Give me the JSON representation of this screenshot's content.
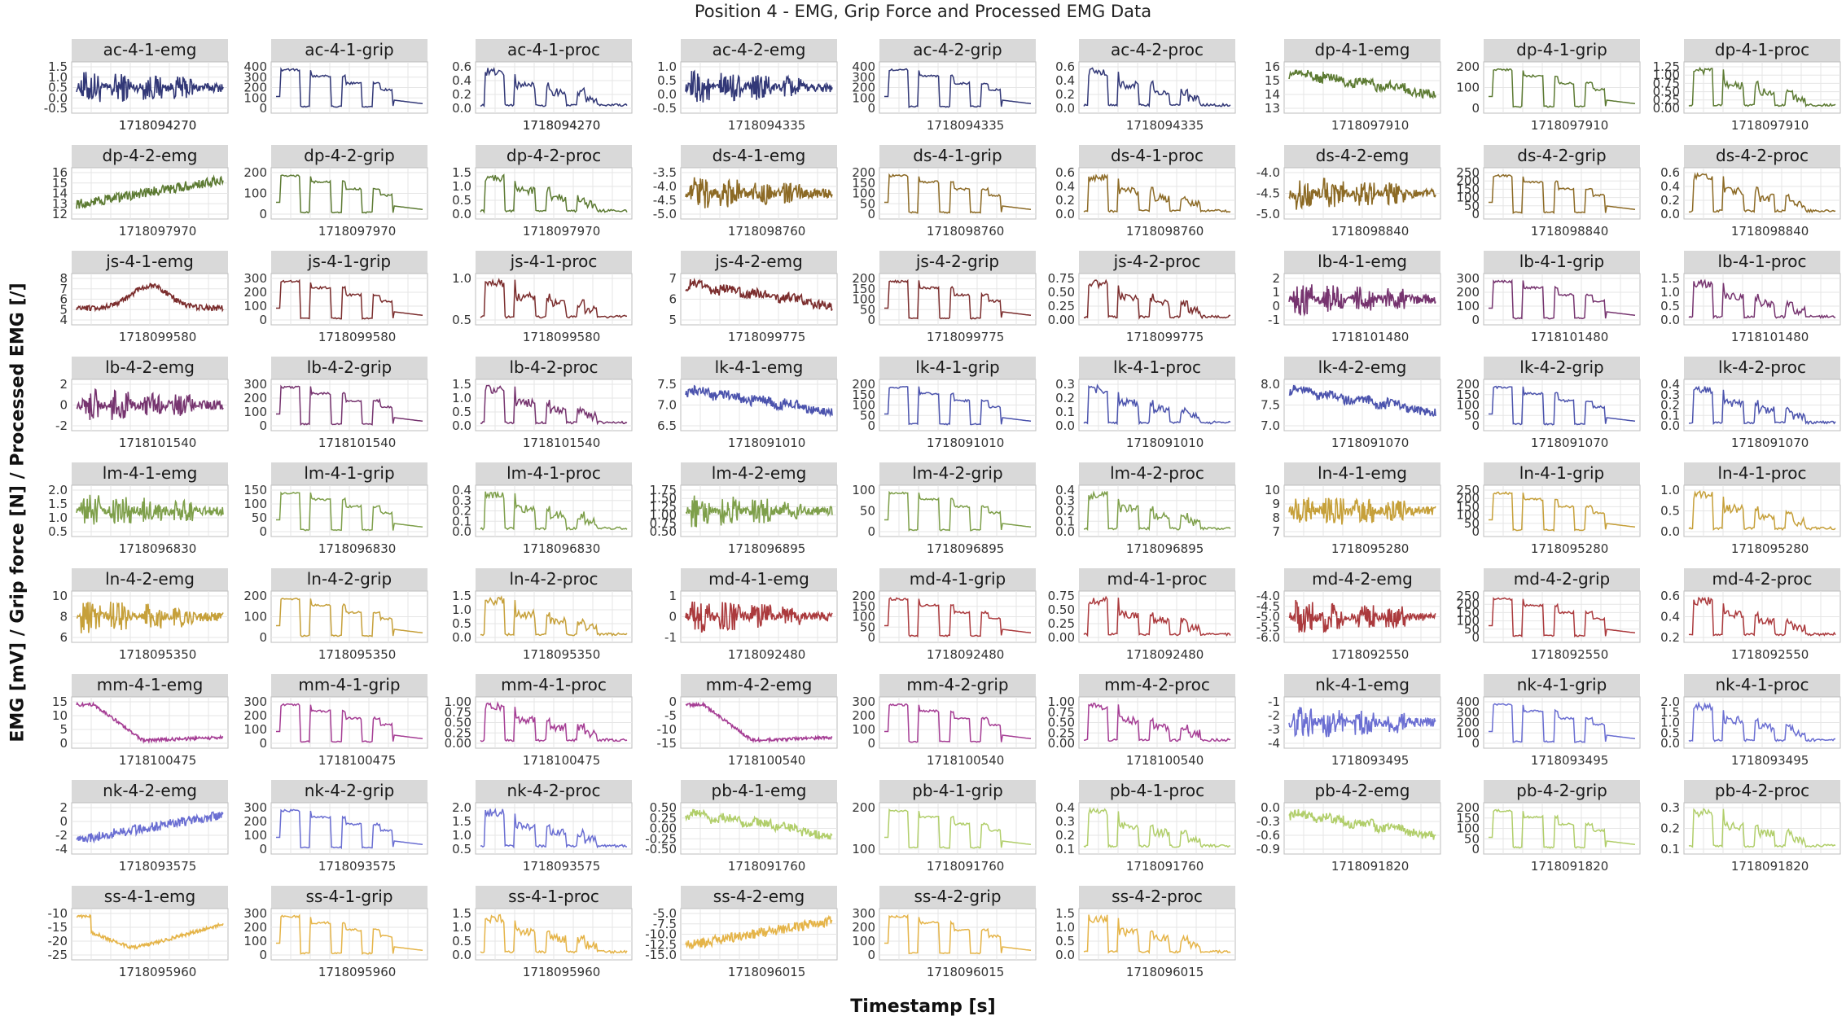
{
  "figure": {
    "title": "Position 4 - EMG, Grip Force and Processed EMG Data",
    "xlabel": "Timestamp [s]",
    "ylabel": "EMG [mV] / Grip force [N] / Processed EMG [/]"
  },
  "colors": {
    "ac": "#323877",
    "dp": "#5c7a32",
    "ds": "#8c6a25",
    "js": "#7b2d2d",
    "lb": "#76346f",
    "lk": "#4b53ad",
    "lm": "#7e9f4a",
    "ln": "#c6a03a",
    "md": "#ab3a3d",
    "mm": "#a53d94",
    "nk": "#6a6ed2",
    "pb": "#b1ce6a",
    "ss": "#e5b448",
    "strip": "#d9d9d9",
    "grid": "#e6e6e6"
  },
  "chart_data": [
    {
      "title": "ac-4-1-emg",
      "type": "line",
      "yticks": [
        "1.5",
        "1.0",
        "0.5",
        "0.0",
        "-0.5"
      ],
      "xticks": [
        "1718094270",
        "1718094270"
      ],
      "shape": "emg_burst"
    },
    {
      "title": "ac-4-1-grip",
      "type": "line",
      "yticks": [
        "400",
        "300",
        "200",
        "100",
        "0"
      ],
      "xticks": [],
      "shape": "grip"
    },
    {
      "title": "ac-4-1-proc",
      "type": "line",
      "yticks": [
        "0.6",
        "0.4",
        "0.2",
        "0.0"
      ],
      "xticks": [
        "1718094270",
        "1718094270"
      ],
      "shape": "proc"
    },
    {
      "title": "ac-4-2-emg",
      "type": "line",
      "yticks": [
        "1.0",
        "0.5",
        "0.0",
        "-0.5"
      ],
      "xticks": [
        "1718094335"
      ],
      "shape": "emg_burst"
    },
    {
      "title": "ac-4-2-grip",
      "type": "line",
      "yticks": [
        "400",
        "300",
        "200",
        "100",
        "0"
      ],
      "xticks": [
        "1718094335"
      ],
      "shape": "grip"
    },
    {
      "title": "ac-4-2-proc",
      "type": "line",
      "yticks": [
        "0.6",
        "0.4",
        "0.2",
        "0.0"
      ],
      "xticks": [
        "1718094335"
      ],
      "shape": "proc"
    },
    {
      "title": "dp-4-1-emg",
      "type": "line",
      "yticks": [
        "16",
        "15",
        "14",
        "13"
      ],
      "xticks": [
        "1718097910"
      ],
      "shape": "emg_decay"
    },
    {
      "title": "dp-4-1-grip",
      "type": "line",
      "yticks": [
        "200",
        "100",
        "0"
      ],
      "xticks": [
        "1718097910"
      ],
      "shape": "grip"
    },
    {
      "title": "dp-4-1-proc",
      "type": "line",
      "yticks": [
        "1.25",
        "1.00",
        "0.75",
        "0.50",
        "0.25",
        "0.00"
      ],
      "xticks": [
        "1718097910"
      ],
      "shape": "proc"
    },
    {
      "title": "dp-4-2-emg",
      "type": "line",
      "yticks": [
        "16",
        "15",
        "14",
        "13",
        "12"
      ],
      "xticks": [
        "1718097970"
      ],
      "shape": "emg_rise"
    },
    {
      "title": "dp-4-2-grip",
      "type": "line",
      "yticks": [
        "200",
        "100",
        "0"
      ],
      "xticks": [
        "1718097970"
      ],
      "shape": "grip"
    },
    {
      "title": "dp-4-2-proc",
      "type": "line",
      "yticks": [
        "1.5",
        "1.0",
        "0.5",
        "0.0"
      ],
      "xticks": [
        "1718097970"
      ],
      "shape": "proc"
    },
    {
      "title": "ds-4-1-emg",
      "type": "line",
      "yticks": [
        "-3.5",
        "-4.0",
        "-4.5",
        "-5.0"
      ],
      "xticks": [
        "1718098760"
      ],
      "shape": "emg_burst"
    },
    {
      "title": "ds-4-1-grip",
      "type": "line",
      "yticks": [
        "200",
        "150",
        "100",
        "50",
        "0"
      ],
      "xticks": [
        "1718098760"
      ],
      "shape": "grip"
    },
    {
      "title": "ds-4-1-proc",
      "type": "line",
      "yticks": [
        "0.6",
        "0.4",
        "0.2",
        "0.0"
      ],
      "xticks": [
        "1718098760"
      ],
      "shape": "proc"
    },
    {
      "title": "ds-4-2-emg",
      "type": "line",
      "yticks": [
        "-4.0",
        "-4.5",
        "-5.0"
      ],
      "xticks": [
        "1718098840"
      ],
      "shape": "emg_burst"
    },
    {
      "title": "ds-4-2-grip",
      "type": "line",
      "yticks": [
        "250",
        "200",
        "150",
        "100",
        "50",
        "0"
      ],
      "xticks": [
        "1718098840"
      ],
      "shape": "grip"
    },
    {
      "title": "ds-4-2-proc",
      "type": "line",
      "yticks": [
        "0.6",
        "0.4",
        "0.2",
        "0.0"
      ],
      "xticks": [
        "1718098840"
      ],
      "shape": "proc"
    },
    {
      "title": "js-4-1-emg",
      "type": "line",
      "yticks": [
        "8",
        "7",
        "6",
        "5",
        "4"
      ],
      "xticks": [
        "1718099580"
      ],
      "shape": "emg_hump"
    },
    {
      "title": "js-4-1-grip",
      "type": "line",
      "yticks": [
        "300",
        "200",
        "100",
        "0"
      ],
      "xticks": [
        "1718099580"
      ],
      "shape": "grip"
    },
    {
      "title": "js-4-1-proc",
      "type": "line",
      "yticks": [
        "1.0",
        "0.5"
      ],
      "xticks": [
        "1718099580"
      ],
      "shape": "proc"
    },
    {
      "title": "js-4-2-emg",
      "type": "line",
      "yticks": [
        "7",
        "6",
        "5"
      ],
      "xticks": [
        "1718099775"
      ],
      "shape": "emg_decay"
    },
    {
      "title": "js-4-2-grip",
      "type": "line",
      "yticks": [
        "200",
        "150",
        "100",
        "50",
        "0"
      ],
      "xticks": [
        "1718099775"
      ],
      "shape": "grip"
    },
    {
      "title": "js-4-2-proc",
      "type": "line",
      "yticks": [
        "0.75",
        "0.50",
        "0.25",
        "0.00"
      ],
      "xticks": [
        "1718099775"
      ],
      "shape": "proc"
    },
    {
      "title": "lb-4-1-emg",
      "type": "line",
      "yticks": [
        "2",
        "1",
        "0",
        "-1"
      ],
      "xticks": [
        "1718101480"
      ],
      "shape": "emg_burst"
    },
    {
      "title": "lb-4-1-grip",
      "type": "line",
      "yticks": [
        "300",
        "200",
        "100",
        "0"
      ],
      "xticks": [
        "1718101480"
      ],
      "shape": "grip"
    },
    {
      "title": "lb-4-1-proc",
      "type": "line",
      "yticks": [
        "1.5",
        "1.0",
        "0.5",
        "0.0"
      ],
      "xticks": [
        "1718101480"
      ],
      "shape": "proc"
    },
    {
      "title": "lb-4-2-emg",
      "type": "line",
      "yticks": [
        "2",
        "0",
        "-2"
      ],
      "xticks": [
        "1718101540"
      ],
      "shape": "emg_burst"
    },
    {
      "title": "lb-4-2-grip",
      "type": "line",
      "yticks": [
        "300",
        "200",
        "100",
        "0"
      ],
      "xticks": [
        "1718101540"
      ],
      "shape": "grip"
    },
    {
      "title": "lb-4-2-proc",
      "type": "line",
      "yticks": [
        "1.5",
        "1.0",
        "0.5",
        "0.0"
      ],
      "xticks": [
        "1718101540"
      ],
      "shape": "proc"
    },
    {
      "title": "lk-4-1-emg",
      "type": "line",
      "yticks": [
        "7.5",
        "7.0",
        "6.5"
      ],
      "xticks": [
        "1718091010"
      ],
      "shape": "emg_decay"
    },
    {
      "title": "lk-4-1-grip",
      "type": "line",
      "yticks": [
        "200",
        "150",
        "100",
        "50",
        "0"
      ],
      "xticks": [
        "1718091010"
      ],
      "shape": "grip"
    },
    {
      "title": "lk-4-1-proc",
      "type": "line",
      "yticks": [
        "0.3",
        "0.2",
        "0.1",
        "0.0"
      ],
      "xticks": [
        "1718091010"
      ],
      "shape": "proc"
    },
    {
      "title": "lk-4-2-emg",
      "type": "line",
      "yticks": [
        "8.0",
        "7.5",
        "7.0"
      ],
      "xticks": [
        "1718091070"
      ],
      "shape": "emg_decay"
    },
    {
      "title": "lk-4-2-grip",
      "type": "line",
      "yticks": [
        "200",
        "150",
        "100",
        "50",
        "0"
      ],
      "xticks": [
        "1718091070"
      ],
      "shape": "grip"
    },
    {
      "title": "lk-4-2-proc",
      "type": "line",
      "yticks": [
        "0.4",
        "0.3",
        "0.2",
        "0.1",
        "0.0"
      ],
      "xticks": [
        "1718091070"
      ],
      "shape": "proc"
    },
    {
      "title": "lm-4-1-emg",
      "type": "line",
      "yticks": [
        "2.0",
        "1.5",
        "1.0",
        "0.5"
      ],
      "xticks": [
        "1718096830"
      ],
      "shape": "emg_burst"
    },
    {
      "title": "lm-4-1-grip",
      "type": "line",
      "yticks": [
        "150",
        "100",
        "50",
        "0"
      ],
      "xticks": [
        "1718096830"
      ],
      "shape": "grip"
    },
    {
      "title": "lm-4-1-proc",
      "type": "line",
      "yticks": [
        "0.4",
        "0.3",
        "0.2",
        "0.1",
        "0.0"
      ],
      "xticks": [
        "1718096830"
      ],
      "shape": "proc"
    },
    {
      "title": "lm-4-2-emg",
      "type": "line",
      "yticks": [
        "1.75",
        "1.50",
        "1.25",
        "1.00",
        "0.75",
        "0.50"
      ],
      "xticks": [
        "1718096895"
      ],
      "shape": "emg_burst"
    },
    {
      "title": "lm-4-2-grip",
      "type": "line",
      "yticks": [
        "100",
        "50",
        "0"
      ],
      "xticks": [
        "1718096895"
      ],
      "shape": "grip"
    },
    {
      "title": "lm-4-2-proc",
      "type": "line",
      "yticks": [
        "0.4",
        "0.3",
        "0.2",
        "0.1",
        "0.0"
      ],
      "xticks": [
        "1718096895"
      ],
      "shape": "proc"
    },
    {
      "title": "ln-4-1-emg",
      "type": "line",
      "yticks": [
        "10",
        "9",
        "8",
        "7"
      ],
      "xticks": [
        "1718095280"
      ],
      "shape": "emg_burst"
    },
    {
      "title": "ln-4-1-grip",
      "type": "line",
      "yticks": [
        "250",
        "200",
        "150",
        "100",
        "50",
        "0"
      ],
      "xticks": [
        "1718095280"
      ],
      "shape": "grip"
    },
    {
      "title": "ln-4-1-proc",
      "type": "line",
      "yticks": [
        "1.0",
        "0.5",
        "0.0"
      ],
      "xticks": [
        "1718095280"
      ],
      "shape": "proc"
    },
    {
      "title": "ln-4-2-emg",
      "type": "line",
      "yticks": [
        "10",
        "8",
        "6"
      ],
      "xticks": [
        "1718095350"
      ],
      "shape": "emg_burst"
    },
    {
      "title": "ln-4-2-grip",
      "type": "line",
      "yticks": [
        "200",
        "100",
        "0"
      ],
      "xticks": [
        "1718095350"
      ],
      "shape": "grip"
    },
    {
      "title": "ln-4-2-proc",
      "type": "line",
      "yticks": [
        "1.5",
        "1.0",
        "0.5",
        "0.0"
      ],
      "xticks": [
        "1718095350"
      ],
      "shape": "proc"
    },
    {
      "title": "md-4-1-emg",
      "type": "line",
      "yticks": [
        "1",
        "0",
        "-1"
      ],
      "xticks": [
        "1718092480"
      ],
      "shape": "emg_burst"
    },
    {
      "title": "md-4-1-grip",
      "type": "line",
      "yticks": [
        "200",
        "150",
        "100",
        "50",
        "0"
      ],
      "xticks": [
        "1718092480"
      ],
      "shape": "grip"
    },
    {
      "title": "md-4-1-proc",
      "type": "line",
      "yticks": [
        "0.75",
        "0.50",
        "0.25",
        "0.00"
      ],
      "xticks": [
        "1718092480"
      ],
      "shape": "proc"
    },
    {
      "title": "md-4-2-emg",
      "type": "line",
      "yticks": [
        "-4.0",
        "-4.5",
        "-5.0",
        "-5.5",
        "-6.0"
      ],
      "xticks": [
        "1718092550"
      ],
      "shape": "emg_burst"
    },
    {
      "title": "md-4-2-grip",
      "type": "line",
      "yticks": [
        "250",
        "200",
        "150",
        "100",
        "50",
        "0"
      ],
      "xticks": [
        "1718092550"
      ],
      "shape": "grip"
    },
    {
      "title": "md-4-2-proc",
      "type": "line",
      "yticks": [
        "0.6",
        "0.4",
        "0.2"
      ],
      "xticks": [
        "1718092550"
      ],
      "shape": "proc"
    },
    {
      "title": "mm-4-1-emg",
      "type": "line",
      "yticks": [
        "15",
        "10",
        "5",
        "0"
      ],
      "xticks": [
        "1718100475"
      ],
      "shape": "emg_drop"
    },
    {
      "title": "mm-4-1-grip",
      "type": "line",
      "yticks": [
        "300",
        "200",
        "100",
        "0"
      ],
      "xticks": [
        "1718100475"
      ],
      "shape": "grip"
    },
    {
      "title": "mm-4-1-proc",
      "type": "line",
      "yticks": [
        "1.00",
        "0.75",
        "0.50",
        "0.25",
        "0.00"
      ],
      "xticks": [
        "1718100475"
      ],
      "shape": "proc"
    },
    {
      "title": "mm-4-2-emg",
      "type": "line",
      "yticks": [
        "0",
        "-5",
        "-10",
        "-15"
      ],
      "xticks": [
        "1718100540"
      ],
      "shape": "emg_drop"
    },
    {
      "title": "mm-4-2-grip",
      "type": "line",
      "yticks": [
        "300",
        "200",
        "100",
        "0"
      ],
      "xticks": [
        "1718100540"
      ],
      "shape": "grip"
    },
    {
      "title": "mm-4-2-proc",
      "type": "line",
      "yticks": [
        "1.00",
        "0.75",
        "0.50",
        "0.25",
        "0.00"
      ],
      "xticks": [
        "1718100540"
      ],
      "shape": "proc"
    },
    {
      "title": "nk-4-1-emg",
      "type": "line",
      "yticks": [
        "-1",
        "-2",
        "-3",
        "-4"
      ],
      "xticks": [
        "1718093495"
      ],
      "shape": "emg_burst"
    },
    {
      "title": "nk-4-1-grip",
      "type": "line",
      "yticks": [
        "400",
        "300",
        "200",
        "100",
        "0"
      ],
      "xticks": [
        "1718093495"
      ],
      "shape": "grip"
    },
    {
      "title": "nk-4-1-proc",
      "type": "line",
      "yticks": [
        "2.0",
        "1.5",
        "1.0",
        "0.5",
        "0.0"
      ],
      "xticks": [
        "1718093495"
      ],
      "shape": "proc"
    },
    {
      "title": "nk-4-2-emg",
      "type": "line",
      "yticks": [
        "2",
        "0",
        "-2",
        "-4"
      ],
      "xticks": [
        "1718093575"
      ],
      "shape": "emg_rise"
    },
    {
      "title": "nk-4-2-grip",
      "type": "line",
      "yticks": [
        "300",
        "200",
        "100",
        "0"
      ],
      "xticks": [
        "1718093575"
      ],
      "shape": "grip"
    },
    {
      "title": "nk-4-2-proc",
      "type": "line",
      "yticks": [
        "2.0",
        "1.5",
        "1.0",
        "0.5"
      ],
      "xticks": [
        "1718093575"
      ],
      "shape": "proc"
    },
    {
      "title": "pb-4-1-emg",
      "type": "line",
      "yticks": [
        "0.50",
        "0.25",
        "0.00",
        "-0.25",
        "-0.50"
      ],
      "xticks": [
        "1718091760"
      ],
      "shape": "emg_decay"
    },
    {
      "title": "pb-4-1-grip",
      "type": "line",
      "yticks": [
        "200",
        "100"
      ],
      "xticks": [
        "1718091760"
      ],
      "shape": "grip"
    },
    {
      "title": "pb-4-1-proc",
      "type": "line",
      "yticks": [
        "0.4",
        "0.3",
        "0.2",
        "0.1"
      ],
      "xticks": [
        "1718091760"
      ],
      "shape": "proc"
    },
    {
      "title": "pb-4-2-emg",
      "type": "line",
      "yticks": [
        "0.0",
        "-0.3",
        "-0.6",
        "-0.9"
      ],
      "xticks": [
        "1718091820"
      ],
      "shape": "emg_decay"
    },
    {
      "title": "pb-4-2-grip",
      "type": "line",
      "yticks": [
        "200",
        "150",
        "100",
        "50",
        "0"
      ],
      "xticks": [
        "1718091820"
      ],
      "shape": "grip"
    },
    {
      "title": "pb-4-2-proc",
      "type": "line",
      "yticks": [
        "0.3",
        "0.2",
        "0.1"
      ],
      "xticks": [
        "1718091820"
      ],
      "shape": "proc"
    },
    {
      "title": "ss-4-1-emg",
      "type": "line",
      "yticks": [
        "-10",
        "-15",
        "-20",
        "-25"
      ],
      "xticks": [
        "1718095960"
      ],
      "shape": "emg_valley"
    },
    {
      "title": "ss-4-1-grip",
      "type": "line",
      "yticks": [
        "300",
        "200",
        "100",
        "0"
      ],
      "xticks": [
        "1718095960"
      ],
      "shape": "grip"
    },
    {
      "title": "ss-4-1-proc",
      "type": "line",
      "yticks": [
        "1.5",
        "1.0",
        "0.5",
        "0.0"
      ],
      "xticks": [
        "1718095960"
      ],
      "shape": "proc"
    },
    {
      "title": "ss-4-2-emg",
      "type": "line",
      "yticks": [
        "-5.0",
        "-7.5",
        "-10.0",
        "-12.5",
        "-15.0"
      ],
      "xticks": [
        "1718096015"
      ],
      "shape": "emg_rise"
    },
    {
      "title": "ss-4-2-grip",
      "type": "line",
      "yticks": [
        "300",
        "200",
        "100",
        "0"
      ],
      "xticks": [
        "1718096015"
      ],
      "shape": "grip"
    },
    {
      "title": "ss-4-2-proc",
      "type": "line",
      "yticks": [
        "1.5",
        "1.0",
        "0.5",
        "0.0"
      ],
      "xticks": [
        "1718096015"
      ],
      "shape": "proc"
    }
  ]
}
